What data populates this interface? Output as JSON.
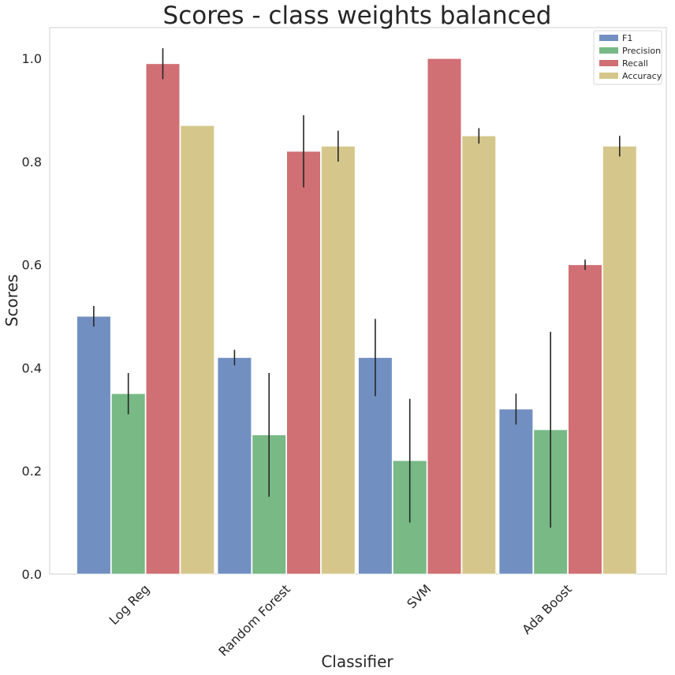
{
  "chart_data": {
    "type": "bar",
    "title": "Scores - class weights balanced",
    "xlabel": "Classifier",
    "ylabel": "Scores",
    "categories": [
      "Log Reg",
      "Random Forest",
      "SVM",
      "Ada Boost"
    ],
    "series": [
      {
        "name": "F1",
        "color": "#7190c1",
        "values": [
          0.5,
          0.42,
          0.42,
          0.32
        ],
        "errors": [
          0.02,
          0.015,
          0.075,
          0.03
        ]
      },
      {
        "name": "Precision",
        "color": "#78b986",
        "values": [
          0.35,
          0.27,
          0.22,
          0.28
        ],
        "errors": [
          0.04,
          0.12,
          0.12,
          0.19
        ]
      },
      {
        "name": "Recall",
        "color": "#d06f74",
        "values": [
          0.99,
          0.82,
          1.0,
          0.6
        ],
        "errors": [
          0.03,
          0.07,
          0.0,
          0.01
        ]
      },
      {
        "name": "Accuracy",
        "color": "#d5c78c",
        "values": [
          0.87,
          0.83,
          0.85,
          0.83
        ],
        "errors": [
          0.0,
          0.03,
          0.015,
          0.02
        ]
      }
    ],
    "ylim": [
      0,
      1.06
    ],
    "yticks": [
      "0.0",
      "0.2",
      "0.4",
      "0.6",
      "0.8",
      "1.0"
    ],
    "grid": false,
    "legend_position": "top-right"
  }
}
